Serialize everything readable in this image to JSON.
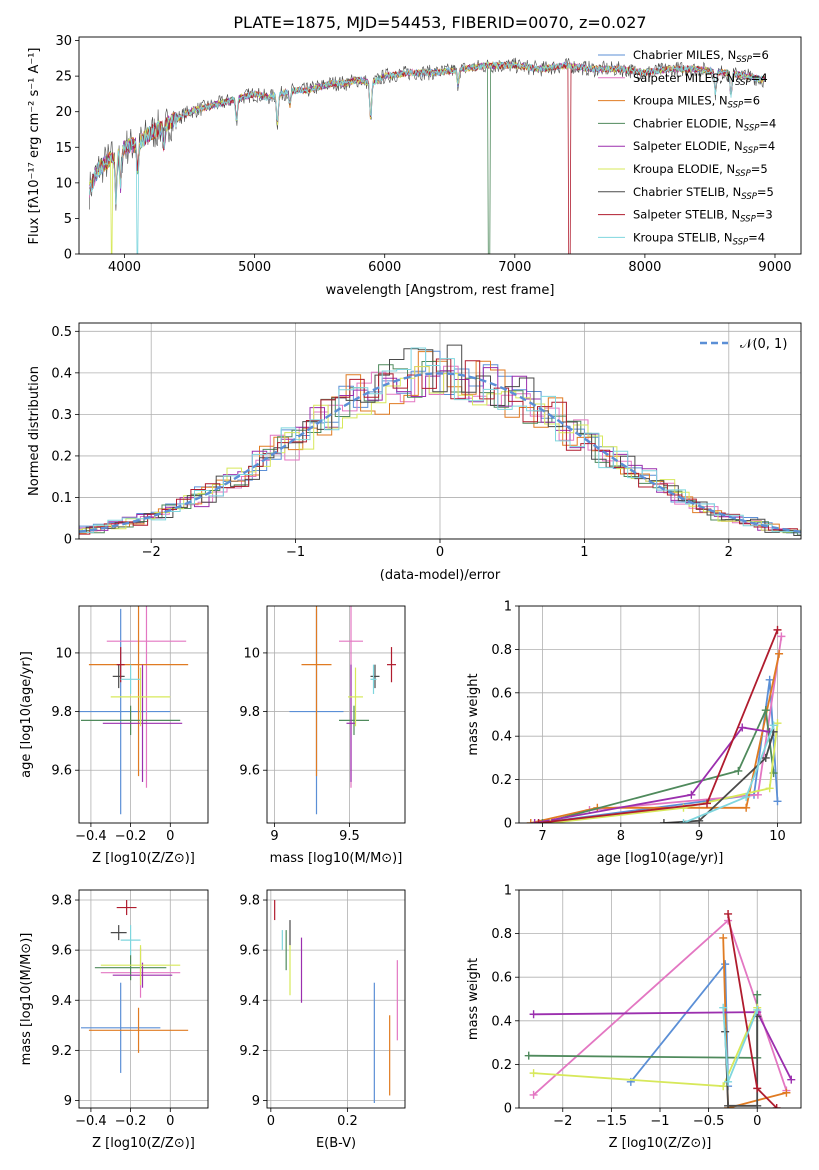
{
  "title": "PLATE=1875, MJD=54453, FIBERID=0070, z=0.027",
  "colors": {
    "chabrier_miles": "#5b8fd6",
    "salpeter_miles": "#e377c2",
    "kroupa_miles": "#e07b22",
    "chabrier_elodie": "#4f8a5c",
    "salpeter_elodie": "#9b2fae",
    "kroupa_elodie": "#d7e85a",
    "chabrier_stelib": "#4a4a4a",
    "salpeter_stelib": "#b01c2e",
    "kroupa_stelib": "#7fd6de",
    "gaussian": "#5b8fd6",
    "grid": "#b0b0b0"
  },
  "chart_data": [
    {
      "id": "spectrum",
      "type": "line",
      "xlabel": "wavelength [Angstrom, rest frame]",
      "ylabel": "Flux [f$_\\lambda$10$^{-17}$ erg cm$^{-2}$ s$^{-1}$ A$^{-1}$]",
      "xlim": [
        3650,
        9200
      ],
      "ylim": [
        0,
        30.5
      ],
      "xticks": [
        4000,
        5000,
        6000,
        7000,
        8000,
        9000
      ],
      "yticks": [
        0,
        5,
        10,
        15,
        20,
        25,
        30
      ],
      "grid": false,
      "legend_position": "right",
      "legend": [
        "Chabrier MILES, N_SSP=6",
        "Salpeter MILES, N_SSP=4",
        "Kroupa MILES, N_SSP=6",
        "Chabrier ELODIE, N_SSP=4",
        "Salpeter ELODIE, N_SSP=4",
        "Kroupa ELODIE, N_SSP=5",
        "Chabrier STELIB, N_SSP=5",
        "Salpeter STELIB, N_SSP=3",
        "Kroupa STELIB, N_SSP=4"
      ],
      "continuum": [
        [
          3730,
          9
        ],
        [
          3800,
          12
        ],
        [
          3900,
          13.5
        ],
        [
          4000,
          15
        ],
        [
          4100,
          15.5
        ],
        [
          4200,
          17
        ],
        [
          4300,
          18
        ],
        [
          4400,
          19
        ],
        [
          4500,
          20
        ],
        [
          4600,
          20.5
        ],
        [
          4700,
          21
        ],
        [
          4800,
          21.5
        ],
        [
          4900,
          22
        ],
        [
          5000,
          22.5
        ],
        [
          5100,
          22
        ],
        [
          5200,
          22.5
        ],
        [
          5300,
          23
        ],
        [
          5400,
          23
        ],
        [
          5500,
          23.5
        ],
        [
          5600,
          24
        ],
        [
          5700,
          24
        ],
        [
          5800,
          24.5
        ],
        [
          5900,
          24
        ],
        [
          6000,
          25
        ],
        [
          6200,
          25.5
        ],
        [
          6400,
          25.5
        ],
        [
          6600,
          26
        ],
        [
          6800,
          26.5
        ],
        [
          7000,
          26.5
        ],
        [
          7200,
          26
        ],
        [
          7400,
          26.5
        ],
        [
          7600,
          26
        ],
        [
          7800,
          26
        ],
        [
          8000,
          25.5
        ],
        [
          8200,
          26
        ],
        [
          8400,
          26
        ],
        [
          8600,
          25.5
        ],
        [
          8800,
          25
        ],
        [
          8900,
          24.5
        ]
      ]
    },
    {
      "id": "residuals",
      "type": "line",
      "xlabel": "(data-model)/error",
      "ylabel": "Normed distribution",
      "xlim": [
        -2.5,
        2.5
      ],
      "ylim": [
        0,
        0.52
      ],
      "xticks": [
        -2,
        -1,
        0,
        1,
        2
      ],
      "yticks": [
        0.0,
        0.1,
        0.2,
        0.3,
        0.4,
        0.5
      ],
      "grid": true,
      "legend_position": "top-right",
      "legend": [
        "N(0,1)"
      ],
      "gaussian": {
        "mean": 0,
        "sigma": 1
      }
    },
    {
      "id": "age_vs_Z",
      "type": "scatter",
      "xlabel": "Z [log10(Z/Z⊙)]",
      "ylabel": "age  [log10(age/yr)]",
      "xlim": [
        -0.46,
        0.19
      ],
      "ylim": [
        9.42,
        10.16
      ],
      "xticks": [
        -0.4,
        -0.2,
        0.0
      ],
      "yticks": [
        9.6,
        9.8,
        10.0
      ],
      "grid": true,
      "points": [
        {
          "x": -0.25,
          "y": 9.8,
          "xerr": 0.25,
          "yerr": 0.35
        },
        {
          "x": -0.12,
          "y": 10.04,
          "xerr": 0.2,
          "yerr": 0.5
        },
        {
          "x": -0.16,
          "y": 9.96,
          "xerr": 0.25,
          "yerr": 0.38
        },
        {
          "x": -0.2,
          "y": 9.77,
          "xerr": 0.25,
          "yerr": 0.05
        },
        {
          "x": -0.14,
          "y": 9.76,
          "xerr": 0.2,
          "yerr": 0.2
        },
        {
          "x": -0.15,
          "y": 9.85,
          "xerr": 0.15,
          "yerr": 0.1
        },
        {
          "x": -0.26,
          "y": 9.92,
          "xerr": 0.03,
          "yerr": 0.04
        },
        {
          "x": -0.25,
          "y": 9.96,
          "xerr": 0.02,
          "yerr": 0.06
        },
        {
          "x": -0.2,
          "y": 9.91,
          "xerr": 0.05,
          "yerr": 0.05
        }
      ]
    },
    {
      "id": "age_vs_mass",
      "type": "scatter",
      "xlabel": "mass [log10(M/M⊙)]",
      "ylabel": "",
      "xlim": [
        8.95,
        9.87
      ],
      "ylim": [
        9.42,
        10.16
      ],
      "xticks": [
        9.0,
        9.5
      ],
      "yticks": [
        9.6,
        9.8,
        10.0
      ],
      "grid": true,
      "points": [
        {
          "x": 9.28,
          "y": 9.8,
          "xerr": 0.18,
          "yerr": 0.35
        },
        {
          "x": 9.51,
          "y": 10.04,
          "xerr": 0.08,
          "yerr": 0.5
        },
        {
          "x": 9.28,
          "y": 9.96,
          "xerr": 0.1,
          "yerr": 0.38
        },
        {
          "x": 9.53,
          "y": 9.77,
          "xerr": 0.1,
          "yerr": 0.05
        },
        {
          "x": 9.51,
          "y": 9.76,
          "xerr": 0.03,
          "yerr": 0.2
        },
        {
          "x": 9.54,
          "y": 9.85,
          "xerr": 0.05,
          "yerr": 0.1
        },
        {
          "x": 9.67,
          "y": 9.92,
          "xerr": 0.03,
          "yerr": 0.04
        },
        {
          "x": 9.78,
          "y": 9.96,
          "xerr": 0.03,
          "yerr": 0.06
        },
        {
          "x": 9.66,
          "y": 9.91,
          "xerr": 0.02,
          "yerr": 0.05
        }
      ]
    },
    {
      "id": "weight_vs_age",
      "type": "line",
      "xlabel": "age  [log10(age/yr)]",
      "ylabel": "mass weight",
      "xlim": [
        6.7,
        10.3
      ],
      "ylim": [
        0,
        1.0
      ],
      "xticks": [
        7,
        8,
        9,
        10
      ],
      "yticks": [
        0.0,
        0.2,
        0.4,
        0.6,
        0.8,
        1.0
      ],
      "grid": true,
      "series": [
        {
          "points": [
            [
              6.95,
              0
            ],
            [
              9.7,
              0.13
            ],
            [
              9.9,
              0.66
            ],
            [
              10.0,
              0.1
            ]
          ]
        },
        {
          "points": [
            [
              7.6,
              0.06
            ],
            [
              9.75,
              0.13
            ],
            [
              10.05,
              0.86
            ]
          ]
        },
        {
          "points": [
            [
              6.85,
              0
            ],
            [
              7.7,
              0.07
            ],
            [
              9.6,
              0.07
            ],
            [
              10.02,
              0.78
            ]
          ]
        },
        {
          "points": [
            [
              7.0,
              0
            ],
            [
              9.5,
              0.24
            ],
            [
              9.85,
              0.52
            ],
            [
              9.95,
              0.23
            ]
          ]
        },
        {
          "points": [
            [
              6.9,
              0
            ],
            [
              8.9,
              0.13
            ],
            [
              9.55,
              0.44
            ],
            [
              9.9,
              0.42
            ]
          ]
        },
        {
          "points": [
            [
              7.1,
              0
            ],
            [
              8.8,
              0.07
            ],
            [
              9.9,
              0.16
            ],
            [
              10.0,
              0.46
            ]
          ]
        },
        {
          "points": [
            [
              8.55,
              0
            ],
            [
              9.0,
              0.01
            ],
            [
              9.85,
              0.3
            ],
            [
              9.95,
              0.42
            ]
          ]
        },
        {
          "points": [
            [
              6.95,
              0
            ],
            [
              9.1,
              0.09
            ],
            [
              10.0,
              0.89
            ]
          ]
        },
        {
          "points": [
            [
              8.8,
              0
            ],
            [
              9.6,
              0.12
            ],
            [
              9.95,
              0.45
            ]
          ]
        }
      ]
    },
    {
      "id": "mass_vs_Z",
      "type": "scatter",
      "xlabel": "Z [log10(Z/Z⊙)]",
      "ylabel": "mass [log10(M/M⊙)]",
      "xlim": [
        -0.46,
        0.19
      ],
      "ylim": [
        8.97,
        9.84
      ],
      "xticks": [
        -0.4,
        -0.2,
        0.0
      ],
      "yticks": [
        9.0,
        9.2,
        9.4,
        9.6,
        9.8
      ],
      "grid": true,
      "points": [
        {
          "x": -0.25,
          "y": 9.29,
          "xerr": 0.2,
          "yerr": 0.18
        },
        {
          "x": -0.15,
          "y": 9.51,
          "xerr": 0.2,
          "yerr": 0.1
        },
        {
          "x": -0.16,
          "y": 9.28,
          "xerr": 0.25,
          "yerr": 0.09
        },
        {
          "x": -0.2,
          "y": 9.53,
          "xerr": 0.18,
          "yerr": 0.05
        },
        {
          "x": -0.14,
          "y": 9.5,
          "xerr": 0.15,
          "yerr": 0.05
        },
        {
          "x": -0.15,
          "y": 9.54,
          "xerr": 0.2,
          "yerr": 0.08
        },
        {
          "x": -0.26,
          "y": 9.67,
          "xerr": 0.04,
          "yerr": 0.03
        },
        {
          "x": -0.22,
          "y": 9.77,
          "xerr": 0.05,
          "yerr": 0.03
        },
        {
          "x": -0.2,
          "y": 9.64,
          "xerr": 0.05,
          "yerr": 0.06
        }
      ]
    },
    {
      "id": "mass_vs_ebv",
      "type": "scatter",
      "xlabel": "E(B-V)",
      "ylabel": "",
      "xlim": [
        -0.01,
        0.35
      ],
      "ylim": [
        8.97,
        9.84
      ],
      "xticks": [
        0.0,
        0.2
      ],
      "yticks": [
        9.0,
        9.2,
        9.4,
        9.6,
        9.8
      ],
      "grid": true,
      "points": [
        {
          "x": 0.27,
          "y": 9.23,
          "xerr": 0,
          "yerr": 0.24
        },
        {
          "x": 0.33,
          "y": 9.4,
          "xerr": 0,
          "yerr": 0.16
        },
        {
          "x": 0.31,
          "y": 9.18,
          "xerr": 0,
          "yerr": 0.16
        },
        {
          "x": 0.04,
          "y": 9.6,
          "xerr": 0,
          "yerr": 0.08
        },
        {
          "x": 0.08,
          "y": 9.52,
          "xerr": 0,
          "yerr": 0.13
        },
        {
          "x": 0.05,
          "y": 9.52,
          "xerr": 0,
          "yerr": 0.1
        },
        {
          "x": 0.05,
          "y": 9.67,
          "xerr": 0,
          "yerr": 0.05
        },
        {
          "x": 0.01,
          "y": 9.76,
          "xerr": 0,
          "yerr": 0.04
        },
        {
          "x": 0.03,
          "y": 9.64,
          "xerr": 0,
          "yerr": 0.04
        }
      ]
    },
    {
      "id": "weight_vs_Z",
      "type": "line",
      "xlabel": "Z [log10(Z/Z⊙)]",
      "ylabel": "mass weight",
      "xlim": [
        -2.45,
        0.45
      ],
      "ylim": [
        0,
        1.0
      ],
      "xticks": [
        -2.0,
        -1.5,
        -1.0,
        -0.5,
        0.0
      ],
      "yticks": [
        0.0,
        0.2,
        0.4,
        0.6,
        0.8,
        1.0
      ],
      "grid": true,
      "series": [
        {
          "points": [
            [
              -1.3,
              0.12
            ],
            [
              -0.33,
              0.66
            ],
            [
              -0.3,
              0.1
            ]
          ]
        },
        {
          "points": [
            [
              -2.3,
              0.06
            ],
            [
              -0.3,
              0.86
            ],
            [
              0.3,
              0.08
            ]
          ]
        },
        {
          "points": [
            [
              -0.35,
              0.78
            ],
            [
              -0.3,
              0.0
            ],
            [
              0.3,
              0.07
            ]
          ]
        },
        {
          "points": [
            [
              -2.35,
              0.24
            ],
            [
              0.0,
              0.23
            ],
            [
              0.0,
              0.52
            ]
          ]
        },
        {
          "points": [
            [
              -2.3,
              0.43
            ],
            [
              0.0,
              0.44
            ],
            [
              0.35,
              0.13
            ]
          ]
        },
        {
          "points": [
            [
              -2.3,
              0.16
            ],
            [
              -0.35,
              0.1
            ],
            [
              0.0,
              0.46
            ]
          ]
        },
        {
          "points": [
            [
              -0.33,
              0.35
            ],
            [
              -0.3,
              0.01
            ],
            [
              0.0,
              0.01
            ],
            [
              0.0,
              0.42
            ]
          ]
        },
        {
          "points": [
            [
              -0.3,
              0.89
            ],
            [
              0.0,
              0.09
            ],
            [
              0.2,
              0.0
            ]
          ]
        },
        {
          "points": [
            [
              -0.35,
              0.46
            ],
            [
              -0.3,
              0.12
            ],
            [
              0.0,
              0.45
            ]
          ]
        }
      ]
    }
  ]
}
